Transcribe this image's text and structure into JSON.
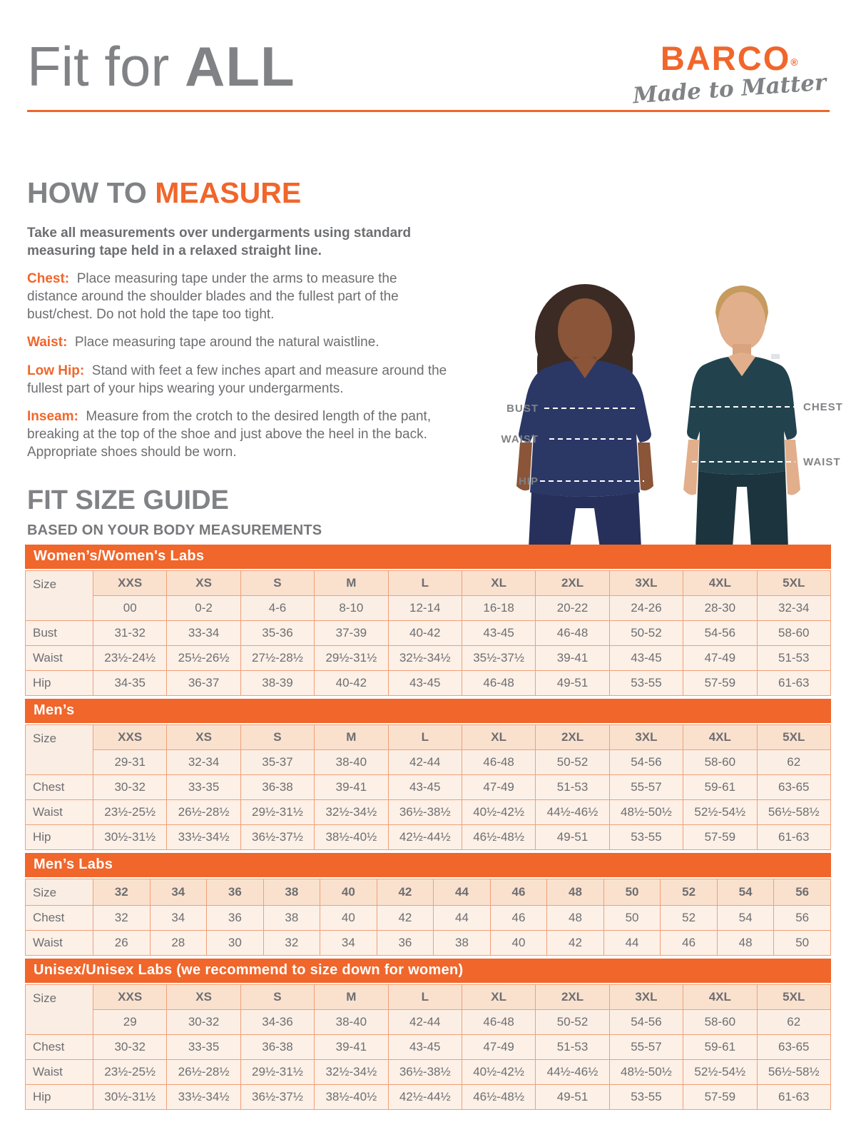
{
  "colors": {
    "accent": "#F0662B",
    "heading_gray": "#808285",
    "body_gray": "#6D6E71",
    "table_border": "#F0A078",
    "table_header_bg": "#FAE1CE",
    "table_cell_bg": "#FCF0E7",
    "woman_scrubs": "#2B3866",
    "man_scrubs": "#22434E"
  },
  "header": {
    "title_light": "Fit for ",
    "title_bold": "ALL",
    "brand": "BARCO",
    "brand_reg": "®",
    "tagline": "Made to Matter"
  },
  "how_to": {
    "heading_gray": "HOW TO ",
    "heading_accent": "MEASURE",
    "intro": "Take all measurements over undergarments using standard measuring tape held in a relaxed straight line.",
    "items": [
      {
        "label": "Chest:",
        "text": "Place measuring tape under the arms to measure the distance around the shoulder blades and the fullest part of the bust/chest. Do not hold the tape too tight."
      },
      {
        "label": "Waist:",
        "text": "Place measuring tape around the natural waistline."
      },
      {
        "label": "Low Hip:",
        "text": "Stand with feet a few inches apart and measure around the fullest part of your hips wearing your undergarments."
      },
      {
        "label": "Inseam:",
        "text": "Measure from the crotch to the desired length of the pant, breaking at the top of the shoe and just above the heel in the back. Appropriate shoes should be worn."
      }
    ]
  },
  "figure": {
    "left_labels": [
      "BUST",
      "WAIST",
      "HIP"
    ],
    "right_labels": [
      "CHEST",
      "WAIST"
    ]
  },
  "fit_guide": {
    "heading": "FIT SIZE GUIDE",
    "subheading": "BASED ON YOUR BODY MEASUREMENTS"
  },
  "tables": [
    {
      "id": "womens",
      "title": "Women’s/Women's Labs",
      "size_label": "Size",
      "sizes": [
        "XXS",
        "XS",
        "S",
        "M",
        "L",
        "XL",
        "2XL",
        "3XL",
        "4XL",
        "5XL"
      ],
      "size_ranges": [
        "00",
        "0-2",
        "4-6",
        "8-10",
        "12-14",
        "16-18",
        "20-22",
        "24-26",
        "28-30",
        "32-34"
      ],
      "rows": [
        {
          "label": "Bust",
          "values": [
            "31-32",
            "33-34",
            "35-36",
            "37-39",
            "40-42",
            "43-45",
            "46-48",
            "50-52",
            "54-56",
            "58-60"
          ]
        },
        {
          "label": "Waist",
          "values": [
            "23½-24½",
            "25½-26½",
            "27½-28½",
            "29½-31½",
            "32½-34½",
            "35½-37½",
            "39-41",
            "43-45",
            "47-49",
            "51-53"
          ]
        },
        {
          "label": "Hip",
          "values": [
            "34-35",
            "36-37",
            "38-39",
            "40-42",
            "43-45",
            "46-48",
            "49-51",
            "53-55",
            "57-59",
            "61-63"
          ]
        }
      ]
    },
    {
      "id": "mens",
      "title": "Men’s",
      "size_label": "Size",
      "sizes": [
        "XXS",
        "XS",
        "S",
        "M",
        "L",
        "XL",
        "2XL",
        "3XL",
        "4XL",
        "5XL"
      ],
      "size_ranges": [
        "29-31",
        "32-34",
        "35-37",
        "38-40",
        "42-44",
        "46-48",
        "50-52",
        "54-56",
        "58-60",
        "62"
      ],
      "rows": [
        {
          "label": "Chest",
          "values": [
            "30-32",
            "33-35",
            "36-38",
            "39-41",
            "43-45",
            "47-49",
            "51-53",
            "55-57",
            "59-61",
            "63-65"
          ]
        },
        {
          "label": "Waist",
          "values": [
            "23½-25½",
            "26½-28½",
            "29½-31½",
            "32½-34½",
            "36½-38½",
            "40½-42½",
            "44½-46½",
            "48½-50½",
            "52½-54½",
            "56½-58½"
          ]
        },
        {
          "label": "Hip",
          "values": [
            "30½-31½",
            "33½-34½",
            "36½-37½",
            "38½-40½",
            "42½-44½",
            "46½-48½",
            "49-51",
            "53-55",
            "57-59",
            "61-63"
          ]
        }
      ]
    },
    {
      "id": "mens-labs",
      "title": "Men’s Labs",
      "size_label": "Size",
      "sizes": [
        "32",
        "34",
        "36",
        "38",
        "40",
        "42",
        "44",
        "46",
        "48",
        "50",
        "52",
        "54",
        "56"
      ],
      "size_ranges": null,
      "rows": [
        {
          "label": "Chest",
          "values": [
            "32",
            "34",
            "36",
            "38",
            "40",
            "42",
            "44",
            "46",
            "48",
            "50",
            "52",
            "54",
            "56"
          ]
        },
        {
          "label": "Waist",
          "values": [
            "26",
            "28",
            "30",
            "32",
            "34",
            "36",
            "38",
            "40",
            "42",
            "44",
            "46",
            "48",
            "50"
          ]
        }
      ]
    },
    {
      "id": "unisex",
      "title": "Unisex/Unisex Labs (we recommend to size down for women)",
      "size_label": "Size",
      "sizes": [
        "XXS",
        "XS",
        "S",
        "M",
        "L",
        "XL",
        "2XL",
        "3XL",
        "4XL",
        "5XL"
      ],
      "size_ranges": [
        "29",
        "30-32",
        "34-36",
        "38-40",
        "42-44",
        "46-48",
        "50-52",
        "54-56",
        "58-60",
        "62"
      ],
      "rows": [
        {
          "label": "Chest",
          "values": [
            "30-32",
            "33-35",
            "36-38",
            "39-41",
            "43-45",
            "47-49",
            "51-53",
            "55-57",
            "59-61",
            "63-65"
          ]
        },
        {
          "label": "Waist",
          "values": [
            "23½-25½",
            "26½-28½",
            "29½-31½",
            "32½-34½",
            "36½-38½",
            "40½-42½",
            "44½-46½",
            "48½-50½",
            "52½-54½",
            "56½-58½"
          ]
        },
        {
          "label": "Hip",
          "values": [
            "30½-31½",
            "33½-34½",
            "36½-37½",
            "38½-40½",
            "42½-44½",
            "46½-48½",
            "49-51",
            "53-55",
            "57-59",
            "61-63"
          ]
        }
      ]
    }
  ]
}
